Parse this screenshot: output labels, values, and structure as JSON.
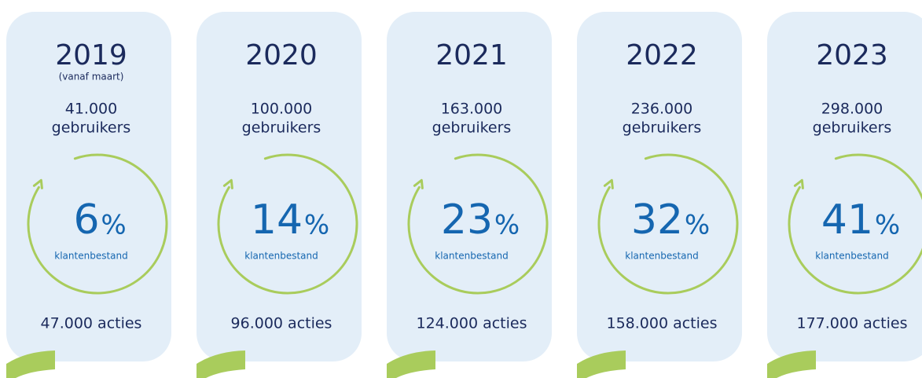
{
  "cards": [
    {
      "year": "2019",
      "note": "(vanaf maart)",
      "users": "41.000",
      "users_label": "gebruikers",
      "percent": "6",
      "unit": "%",
      "share_label": "klantenbestand",
      "actions": "47.000 acties"
    },
    {
      "year": "2020",
      "users": "100.000",
      "users_label": "gebruikers",
      "percent": "14",
      "unit": "%",
      "share_label": "klantenbestand",
      "actions": "96.000 acties"
    },
    {
      "year": "2021",
      "users": "163.000",
      "users_label": "gebruikers",
      "percent": "23",
      "unit": "%",
      "share_label": "klantenbestand",
      "actions": "124.000 acties"
    },
    {
      "year": "2022",
      "users": "236.000",
      "users_label": "gebruikers",
      "percent": "32",
      "unit": "%",
      "share_label": "klantenbestand",
      "actions": "158.000 acties"
    },
    {
      "year": "2023",
      "users": "298.000",
      "users_label": "gebruikers",
      "percent": "41",
      "unit": "%",
      "share_label": "klantenbestand",
      "actions": "177.000 acties"
    }
  ]
}
